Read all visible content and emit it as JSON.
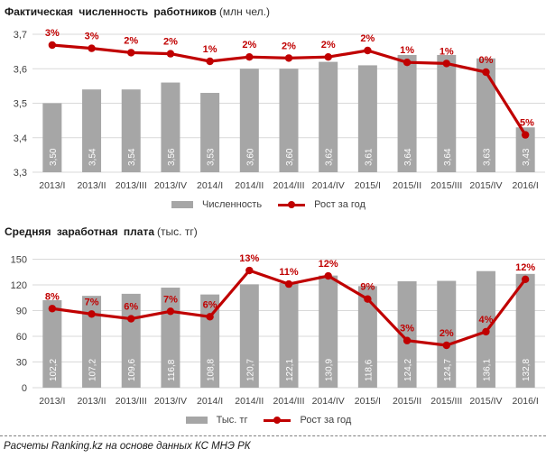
{
  "source_note": "Расчеты Ranking.kz на основе данных КС МНЭ РК",
  "colors": {
    "bar": "#a6a6a6",
    "line": "#c00000",
    "grid": "#d9d9d9",
    "axis_text": "#3f3f3f",
    "bar_label": "#ffffff",
    "line_label": "#c00000"
  },
  "chart_data": [
    {
      "type": "bar+line",
      "title": "Фактическая численность работников",
      "unit_label": "(млн чел.)",
      "legend_position": "bottom",
      "grid": true,
      "categories": [
        "2013/I",
        "2013/II",
        "2013/III",
        "2013/IV",
        "2014/I",
        "2014/II",
        "2014/III",
        "2014/IV",
        "2015/I",
        "2015/II",
        "2015/III",
        "2015/IV",
        "2016/I"
      ],
      "series": [
        {
          "name": "Численность",
          "type": "bar",
          "values": [
            3.5,
            3.54,
            3.54,
            3.56,
            3.53,
            3.6,
            3.6,
            3.62,
            3.61,
            3.64,
            3.64,
            3.63,
            3.43
          ],
          "labels": [
            "3,50",
            "3,54",
            "3,54",
            "3,56",
            "3,53",
            "3,60",
            "3,60",
            "3,62",
            "3,61",
            "3,64",
            "3,64",
            "3,63",
            "3,43"
          ]
        },
        {
          "name": "Рост за год",
          "type": "line",
          "labels": [
            "3%",
            "3%",
            "2%",
            "2%",
            "1%",
            "2%",
            "2%",
            "2%",
            "2%",
            "1%",
            "1%",
            "0%",
            "-5%"
          ],
          "values": [
            2.9,
            2.6,
            2.2,
            2.1,
            1.4,
            1.8,
            1.7,
            1.8,
            2.4,
            1.3,
            1.2,
            0.4,
            -5.4
          ]
        }
      ],
      "bar_axis": {
        "min": 3.3,
        "max": 3.7,
        "ticks": [
          "3,7",
          "3,6",
          "3,5",
          "3,4",
          "3,3"
        ]
      },
      "line_axis_range": [
        -8.85,
        3.9
      ]
    },
    {
      "type": "bar+line",
      "title": "Средняя заработная плата",
      "unit_label": "(тыс. тг)",
      "legend_position": "bottom",
      "grid": true,
      "categories": [
        "2013/I",
        "2013/II",
        "2013/III",
        "2013/IV",
        "2014/I",
        "2014/II",
        "2014/III",
        "2014/IV",
        "2015/I",
        "2015/II",
        "2015/III",
        "2015/IV",
        "2016/I"
      ],
      "series": [
        {
          "name": "Тыс. тг",
          "type": "bar",
          "values": [
            102.2,
            107.2,
            109.6,
            116.8,
            108.8,
            120.7,
            122.1,
            130.9,
            118.6,
            124.2,
            124.7,
            136.1,
            132.8
          ],
          "labels": [
            "102,2",
            "107,2",
            "109,6",
            "116,8",
            "108,8",
            "120,7",
            "122,1",
            "130,9",
            "118,6",
            "124,2",
            "124,7",
            "136,1",
            "132,8"
          ]
        },
        {
          "name": "Рост за год",
          "type": "line",
          "labels": [
            "8%",
            "7%",
            "6%",
            "7%",
            "6%",
            "13%",
            "11%",
            "12%",
            "9%",
            "3%",
            "2%",
            "4%",
            "12%"
          ],
          "values": [
            7.6,
            6.8,
            6.1,
            7.2,
            6.4,
            13.2,
            11.2,
            12.4,
            9.0,
            2.9,
            2.2,
            4.2,
            11.9
          ]
        }
      ],
      "bar_axis": {
        "min": 0,
        "max": 150,
        "ticks": [
          "150",
          "120",
          "90",
          "60",
          "30",
          "0"
        ]
      },
      "line_axis_range": [
        -4.03,
        14.86
      ]
    }
  ]
}
